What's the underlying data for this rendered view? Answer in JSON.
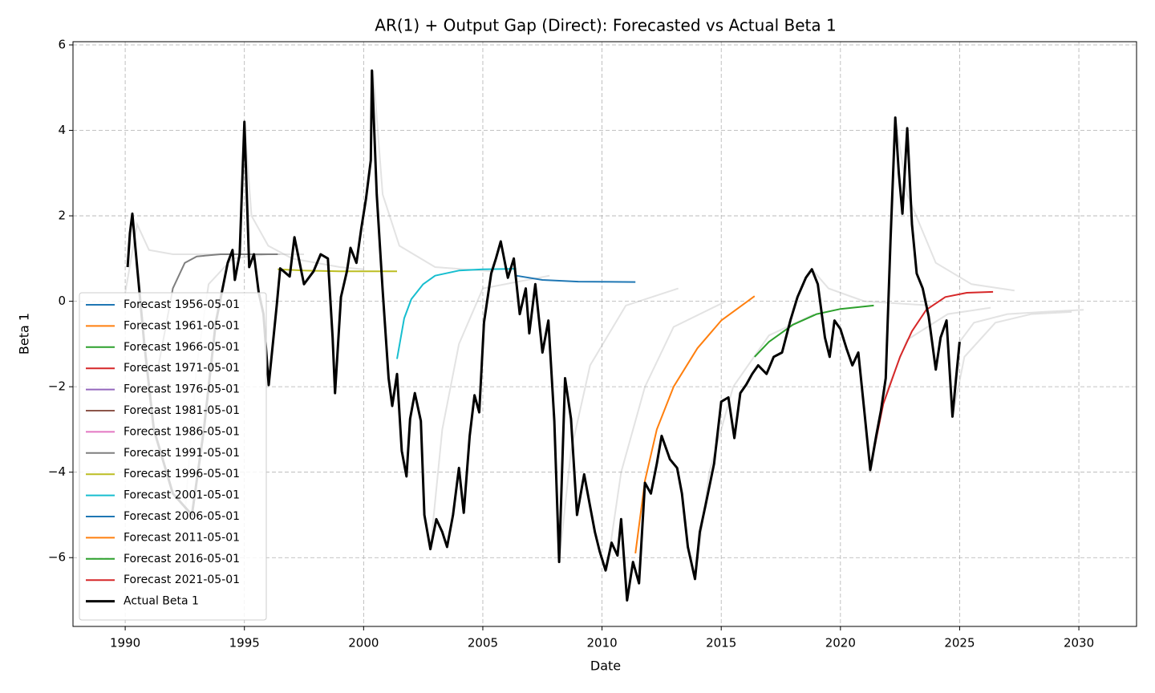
{
  "chart_data": {
    "type": "line",
    "title": "AR(1) + Output Gap (Direct): Forecasted vs Actual Beta 1",
    "x_label": "Date",
    "y_label": "Beta 1",
    "xlim": [
      1987.81,
      2032.42
    ],
    "ylim": [
      -7.61,
      6.075
    ],
    "xticks": [
      1990,
      1995,
      2000,
      2005,
      2010,
      2015,
      2020,
      2025,
      2030
    ],
    "yticks": [
      {
        "value": -6,
        "label": "−6"
      },
      {
        "value": -4,
        "label": "−4"
      },
      {
        "value": -2,
        "label": "−2"
      },
      0,
      2,
      4,
      6
    ],
    "grid": true,
    "legend": "lower left",
    "background_color": "#b0b0b0",
    "background_lines": [
      {
        "x": [
          1990.0,
          1990.5,
          1991.0,
          1992.0,
          1993.0,
          1994.5,
          1996.5
        ],
        "values": [
          0.2,
          1.8,
          1.2,
          1.1,
          1.1,
          1.1,
          1.1
        ]
      },
      {
        "x": [
          1992.5,
          1993.0,
          1993.5,
          1994.5,
          1996.0,
          1997.5
        ],
        "values": [
          -5.0,
          -1.5,
          0.4,
          1.0,
          1.1,
          1.1
        ]
      },
      {
        "x": [
          1995.0,
          1995.3,
          1996.0,
          1997.0,
          1999.0,
          2000.0
        ],
        "values": [
          4.2,
          2.0,
          1.3,
          1.0,
          0.8,
          0.75
        ]
      },
      {
        "x": [
          2000.4,
          2000.8,
          2001.5,
          2003.0,
          2005.4
        ],
        "values": [
          5.4,
          2.5,
          1.3,
          0.8,
          0.7
        ]
      },
      {
        "x": [
          2002.8,
          2003.3,
          2004.0,
          2005.0,
          2007.8
        ],
        "values": [
          -5.8,
          -3.0,
          -1.0,
          0.3,
          0.6
        ]
      },
      {
        "x": [
          2008.2,
          2008.7,
          2009.5,
          2011.0,
          2013.2
        ],
        "values": [
          -6.1,
          -3.5,
          -1.5,
          -0.1,
          0.3
        ]
      },
      {
        "x": [
          2010.2,
          2010.8,
          2011.8,
          2013.0,
          2015.2
        ],
        "values": [
          -6.3,
          -4.0,
          -2.0,
          -0.6,
          0.0
        ]
      },
      {
        "x": [
          2013.9,
          2014.5,
          2015.5,
          2017.0,
          2018.9
        ],
        "values": [
          -6.5,
          -4.0,
          -2.0,
          -0.8,
          -0.3
        ]
      },
      {
        "x": [
          2018.8,
          2019.5,
          2021.0,
          2023.8
        ],
        "values": [
          0.75,
          0.3,
          0.0,
          -0.1
        ]
      },
      {
        "x": [
          2021.3,
          2021.8,
          2022.8,
          2024.5,
          2026.3
        ],
        "values": [
          -3.9,
          -2.3,
          -0.9,
          -0.3,
          -0.15
        ]
      },
      {
        "x": [
          2022.3,
          2022.8,
          2024.0,
          2025.5,
          2027.3
        ],
        "values": [
          4.3,
          2.5,
          0.9,
          0.4,
          0.25
        ]
      },
      {
        "x": [
          2024.7,
          2025.2,
          2026.5,
          2028.0,
          2029.7
        ],
        "values": [
          -2.7,
          -1.3,
          -0.5,
          -0.3,
          -0.25
        ]
      },
      {
        "x": [
          2025.0,
          2025.6,
          2027.0,
          2028.5,
          2030.2
        ],
        "values": [
          -0.95,
          -0.5,
          -0.3,
          -0.25,
          -0.2
        ]
      }
    ],
    "series": [
      {
        "name": "Forecast 1956-05-01",
        "color": "#1f77b4",
        "x": [],
        "values": []
      },
      {
        "name": "Forecast 1961-05-01",
        "color": "#ff7f0e",
        "x": [],
        "values": []
      },
      {
        "name": "Forecast 1966-05-01",
        "color": "#2ca02c",
        "x": [],
        "values": []
      },
      {
        "name": "Forecast 1971-05-01",
        "color": "#d62728",
        "x": [],
        "values": []
      },
      {
        "name": "Forecast 1976-05-01",
        "color": "#9467bd",
        "x": [],
        "values": []
      },
      {
        "name": "Forecast 1981-05-01",
        "color": "#8c564b",
        "x": [],
        "values": []
      },
      {
        "name": "Forecast 1986-05-01",
        "color": "#e377c2",
        "x": [],
        "values": []
      },
      {
        "name": "Forecast 1991-05-01",
        "color": "#7f7f7f",
        "x": [
          1991.4,
          1992.0,
          1992.5,
          1993.0,
          1994.0,
          1995.0,
          1996.4
        ],
        "values": [
          -1.5,
          0.3,
          0.9,
          1.05,
          1.1,
          1.1,
          1.1
        ]
      },
      {
        "name": "Forecast 1996-05-01",
        "color": "#bcbd22",
        "x": [
          1996.4,
          1997.5,
          1999.0,
          2001.4
        ],
        "values": [
          0.75,
          0.72,
          0.7,
          0.7
        ]
      },
      {
        "name": "Forecast 2001-05-01",
        "color": "#17becf",
        "x": [
          2001.4,
          2001.7,
          2002.0,
          2002.5,
          2003.0,
          2004.0,
          2005.0,
          2006.4
        ],
        "values": [
          -1.35,
          -0.4,
          0.05,
          0.4,
          0.6,
          0.72,
          0.75,
          0.76
        ]
      },
      {
        "name": "Forecast 2006-05-01",
        "color": "#1f77b4",
        "x": [
          2006.4,
          2007.5,
          2009.0,
          2011.4
        ],
        "values": [
          0.6,
          0.5,
          0.46,
          0.45
        ]
      },
      {
        "name": "Forecast 2011-05-01",
        "color": "#ff7f0e",
        "x": [
          2011.4,
          2011.8,
          2012.3,
          2013.0,
          2014.0,
          2015.0,
          2016.4
        ],
        "values": [
          -5.9,
          -4.2,
          -3.0,
          -2.0,
          -1.1,
          -0.45,
          0.12
        ]
      },
      {
        "name": "Forecast 2016-05-01",
        "color": "#2ca02c",
        "x": [
          2016.4,
          2017.0,
          2018.0,
          2019.0,
          2020.0,
          2021.4
        ],
        "values": [
          -1.3,
          -0.95,
          -0.55,
          -0.3,
          -0.18,
          -0.1
        ]
      },
      {
        "name": "Forecast 2021-05-01",
        "color": "#d62728",
        "x": [
          2021.4,
          2021.8,
          2022.5,
          2023.0,
          2023.6,
          2024.4,
          2025.3,
          2026.4
        ],
        "values": [
          -3.5,
          -2.4,
          -1.3,
          -0.7,
          -0.2,
          0.1,
          0.2,
          0.22
        ]
      },
      {
        "name": "Actual Beta 1",
        "color": "#000000",
        "x": [
          1990.1,
          1990.2,
          1990.3,
          1990.5,
          1990.8,
          1991.2,
          1992.0,
          1992.8,
          1993.3,
          1993.8,
          1994.3,
          1994.5,
          1994.6,
          1994.8,
          1995.0,
          1995.2,
          1995.4,
          1995.6,
          1995.8,
          1996.02,
          1996.36,
          1996.5,
          1996.9,
          1997.1,
          1997.5,
          1997.9,
          1998.2,
          1998.5,
          1998.7,
          1998.8,
          1999.05,
          1999.3,
          1999.45,
          1999.7,
          1999.9,
          2000.1,
          2000.3,
          2000.35,
          2000.55,
          2000.8,
          2001.05,
          2001.2,
          2001.4,
          2001.6,
          2001.8,
          2001.95,
          2002.15,
          2002.4,
          2002.55,
          2002.8,
          2003.05,
          2003.3,
          2003.5,
          2003.75,
          2004.0,
          2004.2,
          2004.45,
          2004.65,
          2004.85,
          2005.05,
          2005.35,
          2005.55,
          2005.75,
          2006.05,
          2006.3,
          2006.55,
          2006.8,
          2006.95,
          2007.2,
          2007.5,
          2007.75,
          2008.0,
          2008.2,
          2008.45,
          2008.7,
          2008.95,
          2009.25,
          2009.5,
          2009.7,
          2009.9,
          2010.15,
          2010.4,
          2010.65,
          2010.8,
          2011.05,
          2011.3,
          2011.55,
          2011.8,
          2012.05,
          2012.3,
          2012.5,
          2012.85,
          2013.15,
          2013.35,
          2013.6,
          2013.9,
          2014.1,
          2014.35,
          2014.7,
          2015.0,
          2015.3,
          2015.55,
          2015.8,
          2016.05,
          2016.3,
          2016.55,
          2016.9,
          2017.2,
          2017.55,
          2017.9,
          2018.2,
          2018.55,
          2018.8,
          2019.05,
          2019.35,
          2019.55,
          2019.75,
          2020.0,
          2020.25,
          2020.5,
          2020.75,
          2021.0,
          2021.25,
          2021.5,
          2021.7,
          2021.9,
          2022.1,
          2022.3,
          2022.45,
          2022.6,
          2022.8,
          2023.0,
          2023.2,
          2023.45,
          2023.7,
          2024.0,
          2024.2,
          2024.45,
          2024.7,
          2024.85,
          2025.0
        ],
        "values": [
          0.8,
          1.6,
          2.05,
          0.8,
          -1.0,
          -3.0,
          -4.5,
          -5.0,
          -3.0,
          -0.5,
          0.9,
          1.2,
          0.5,
          1.1,
          4.2,
          0.8,
          1.1,
          0.2,
          -0.3,
          -1.96,
          -0.08,
          0.77,
          0.58,
          1.5,
          0.4,
          0.7,
          1.1,
          1.0,
          -0.85,
          -2.15,
          0.1,
          0.7,
          1.25,
          0.9,
          1.7,
          2.4,
          3.3,
          5.4,
          2.5,
          0.25,
          -1.8,
          -2.45,
          -1.7,
          -3.5,
          -4.1,
          -2.75,
          -2.15,
          -2.8,
          -5.0,
          -5.8,
          -5.1,
          -5.4,
          -5.75,
          -5.0,
          -3.9,
          -4.95,
          -3.15,
          -2.2,
          -2.6,
          -0.5,
          0.65,
          1.0,
          1.4,
          0.55,
          1.0,
          -0.3,
          0.3,
          -0.75,
          0.4,
          -1.2,
          -0.45,
          -2.8,
          -6.1,
          -1.8,
          -2.75,
          -5.0,
          -4.05,
          -4.8,
          -5.4,
          -5.85,
          -6.3,
          -5.65,
          -5.95,
          -5.1,
          -7.0,
          -6.1,
          -6.6,
          -4.25,
          -4.5,
          -3.8,
          -3.15,
          -3.7,
          -3.9,
          -4.5,
          -5.75,
          -6.5,
          -5.4,
          -4.75,
          -3.8,
          -2.35,
          -2.25,
          -3.2,
          -2.15,
          -1.95,
          -1.7,
          -1.5,
          -1.7,
          -1.3,
          -1.2,
          -0.45,
          0.1,
          0.55,
          0.75,
          0.4,
          -0.85,
          -1.3,
          -0.45,
          -0.65,
          -1.1,
          -1.5,
          -1.2,
          -2.55,
          -3.95,
          -3.15,
          -2.55,
          -1.8,
          1.4,
          4.3,
          3.0,
          2.05,
          4.05,
          1.8,
          0.65,
          0.3,
          -0.35,
          -1.6,
          -0.85,
          -0.45,
          -2.7,
          -1.8,
          -0.95
        ]
      }
    ]
  }
}
